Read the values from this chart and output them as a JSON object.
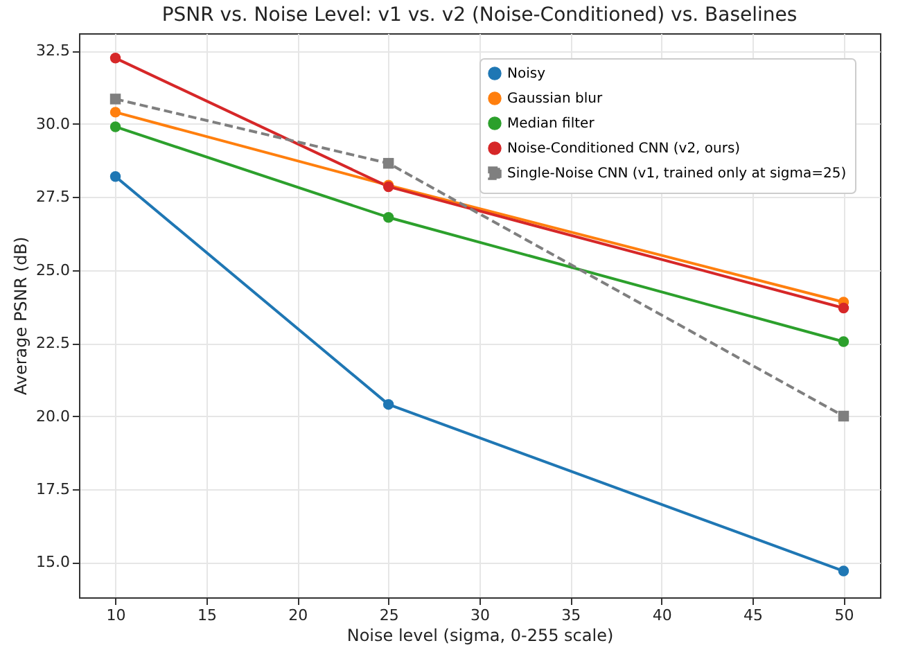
{
  "chart_data": {
    "type": "line",
    "title": "PSNR vs. Noise Level: v1 vs. v2 (Noise-Conditioned) vs. Baselines",
    "xlabel": "Noise level (sigma, 0-255 scale)",
    "ylabel": "Average PSNR (dB)",
    "x": [
      10,
      25,
      50
    ],
    "series": [
      {
        "name": "Noisy",
        "color": "#1f77b4",
        "values": [
          28.2,
          20.4,
          14.7
        ]
      },
      {
        "name": "Gaussian blur",
        "color": "#ff7f0e",
        "values": [
          30.4,
          27.9,
          23.9
        ]
      },
      {
        "name": "Median filter",
        "color": "#2ca02c",
        "values": [
          29.9,
          26.8,
          22.55
        ]
      },
      {
        "name": "Noise-Conditioned CNN (v2, ours)",
        "color": "#d62728",
        "values": [
          32.25,
          27.85,
          23.7
        ]
      },
      {
        "name": "Single-Noise CNN (v1, trained only at sigma=25)",
        "color": "#7f7f7f",
        "values": [
          30.85,
          28.65,
          20.0
        ],
        "marker": "square",
        "line_style": "dashed"
      }
    ],
    "xlim": [
      8,
      52
    ],
    "xticks": [
      10,
      15,
      20,
      25,
      30,
      35,
      40,
      45,
      50
    ],
    "ylim": [
      13.8,
      33.1
    ],
    "yticks": [
      {
        "value": 15,
        "label": "15.0"
      },
      {
        "value": 17.5,
        "label": "17.5"
      },
      {
        "value": 20,
        "label": "20.0"
      },
      {
        "value": 22.5,
        "label": "22.5"
      },
      {
        "value": 25,
        "label": "25.0"
      },
      {
        "value": 27.5,
        "label": "27.5"
      },
      {
        "value": 30,
        "label": "30.0"
      },
      {
        "value": 32.5,
        "label": "32.5"
      }
    ],
    "grid": true,
    "legend": "top right",
    "marker": "circle",
    "line_style": "solid"
  }
}
